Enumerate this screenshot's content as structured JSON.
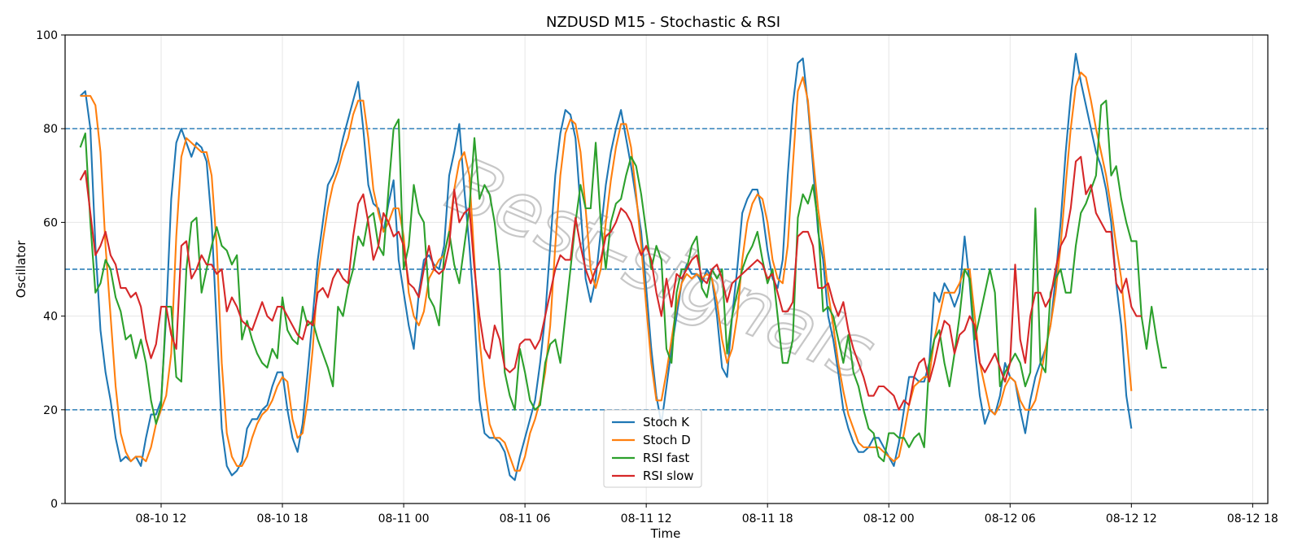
{
  "watermark": "Best-signals",
  "colors": {
    "k": "#1f77b4",
    "d": "#ff7f0e",
    "rsi_fast": "#2ca02c",
    "rsi_slow": "#d62728",
    "hline": "#1f77b4",
    "grid": "#e6e6e6"
  },
  "chart_data": {
    "type": "line",
    "title": "NZDUSD M15 - Stochastic & RSI",
    "xlabel": "Time",
    "ylabel": "Oscillator",
    "ylim": [
      0,
      100
    ],
    "xlim": [
      "2025-08-10 07:15",
      "2025-08-12 18:45"
    ],
    "x_start": "2025-08-10 08:00",
    "x_step_minutes": 15,
    "x_ticks": [
      {
        "x": "2025-08-10 12:00",
        "label": "08-10 12"
      },
      {
        "x": "2025-08-10 18:00",
        "label": "08-10 18"
      },
      {
        "x": "2025-08-11 00:00",
        "label": "08-11 00"
      },
      {
        "x": "2025-08-11 06:00",
        "label": "08-11 06"
      },
      {
        "x": "2025-08-11 12:00",
        "label": "08-11 12"
      },
      {
        "x": "2025-08-11 18:00",
        "label": "08-11 18"
      },
      {
        "x": "2025-08-12 00:00",
        "label": "08-12 00"
      },
      {
        "x": "2025-08-12 06:00",
        "label": "08-12 06"
      },
      {
        "x": "2025-08-12 12:00",
        "label": "08-12 12"
      },
      {
        "x": "2025-08-12 18:00",
        "label": "08-12 18"
      }
    ],
    "y_ticks": [
      0,
      20,
      40,
      60,
      80,
      100
    ],
    "hlines": [
      20,
      50,
      80
    ],
    "grid": true,
    "legend": "bottom-center",
    "series": [
      {
        "name": "Stoch K",
        "values": [
          87,
          88,
          80,
          55,
          37,
          28,
          22,
          14,
          9,
          10,
          9,
          10,
          8,
          14,
          19,
          19,
          22,
          40,
          65,
          77,
          80,
          77,
          74,
          77,
          76,
          73,
          60,
          38,
          16,
          8,
          6,
          7,
          9,
          16,
          18,
          18,
          20,
          21,
          25,
          28,
          28,
          20,
          14,
          11,
          17,
          28,
          40,
          52,
          60,
          68,
          70,
          73,
          78,
          82,
          86,
          90,
          80,
          68,
          64,
          63,
          58,
          64,
          69,
          52,
          45,
          38,
          33,
          45,
          52,
          53,
          51,
          50,
          55,
          70,
          75,
          81,
          67,
          55,
          40,
          22,
          15,
          14,
          14,
          13,
          11,
          6,
          5,
          10,
          14,
          18,
          22,
          30,
          40,
          55,
          70,
          79,
          84,
          83,
          78,
          63,
          48,
          43,
          48,
          58,
          68,
          75,
          80,
          84,
          78,
          72,
          65,
          58,
          46,
          33,
          23,
          17,
          25,
          33,
          40,
          47,
          51,
          49,
          49,
          47,
          50,
          48,
          40,
          29,
          27,
          40,
          50,
          62,
          65,
          67,
          67,
          62,
          54,
          48,
          46,
          52,
          70,
          85,
          94,
          95,
          85,
          72,
          58,
          52,
          40,
          35,
          28,
          20,
          16,
          13,
          11,
          11,
          12,
          14,
          14,
          12,
          10,
          8,
          13,
          20,
          27,
          27,
          26,
          26,
          30,
          45,
          43,
          47,
          45,
          42,
          45,
          57,
          47,
          33,
          23,
          17,
          20,
          19,
          23,
          30,
          27,
          26,
          20,
          15,
          22,
          27,
          30,
          33,
          38,
          48,
          60,
          75,
          87,
          96,
          90,
          85,
          80,
          75,
          72,
          67,
          60,
          47,
          38,
          23,
          16
        ]
      },
      {
        "name": "Stoch D",
        "values": [
          87,
          87,
          87,
          85,
          75,
          55,
          40,
          25,
          15,
          11,
          9,
          10,
          10,
          9,
          12,
          17,
          20,
          23,
          32,
          57,
          74,
          78,
          77,
          76,
          75,
          75,
          70,
          55,
          30,
          15,
          10,
          8,
          8,
          10,
          14,
          17,
          19,
          20,
          22,
          25,
          27,
          26,
          18,
          14,
          15,
          22,
          33,
          48,
          56,
          63,
          68,
          71,
          75,
          78,
          83,
          86,
          86,
          78,
          67,
          62,
          58,
          60,
          63,
          63,
          57,
          45,
          40,
          38,
          41,
          48,
          50,
          52,
          53,
          58,
          67,
          73,
          75,
          70,
          52,
          35,
          25,
          17,
          14,
          14,
          13,
          10,
          7,
          7,
          10,
          15,
          18,
          22,
          28,
          38,
          55,
          70,
          79,
          82,
          81,
          75,
          63,
          50,
          46,
          50,
          60,
          69,
          76,
          81,
          81,
          76,
          66,
          55,
          42,
          30,
          22,
          22,
          28,
          35,
          42,
          47,
          49,
          48,
          49,
          48,
          49,
          48,
          43,
          35,
          30,
          33,
          40,
          52,
          60,
          64,
          66,
          65,
          60,
          52,
          48,
          47,
          55,
          72,
          88,
          91,
          86,
          74,
          63,
          55,
          45,
          38,
          30,
          24,
          19,
          16,
          13,
          12,
          12,
          12,
          12,
          11,
          10,
          9,
          10,
          15,
          21,
          25,
          26,
          27,
          27,
          35,
          40,
          45,
          45,
          45,
          47,
          50,
          50,
          40,
          30,
          25,
          20,
          19,
          21,
          25,
          27,
          26,
          22,
          20,
          20,
          22,
          27,
          33,
          38,
          45,
          55,
          68,
          80,
          89,
          92,
          91,
          86,
          80,
          75,
          70,
          63,
          55,
          48,
          36,
          24
        ]
      },
      {
        "name": "RSI fast",
        "values": [
          76,
          79,
          60,
          45,
          47,
          52,
          50,
          44,
          41,
          35,
          36,
          31,
          35,
          30,
          22,
          17,
          21,
          42,
          42,
          27,
          26,
          50,
          60,
          61,
          45,
          50,
          55,
          59,
          55,
          54,
          51,
          53,
          35,
          39,
          35,
          32,
          30,
          29,
          33,
          31,
          44,
          37,
          35,
          34,
          42,
          38,
          39,
          35,
          32,
          29,
          25,
          42,
          40,
          46,
          50,
          57,
          55,
          61,
          62,
          55,
          53,
          67,
          80,
          82,
          50,
          55,
          68,
          62,
          60,
          44,
          42,
          38,
          53,
          58,
          51,
          47,
          55,
          63,
          78,
          65,
          68,
          66,
          60,
          50,
          28,
          23,
          20,
          33,
          28,
          22,
          20,
          21,
          30,
          34,
          35,
          30,
          40,
          50,
          60,
          68,
          63,
          63,
          77,
          60,
          50,
          60,
          64,
          65,
          70,
          74,
          72,
          66,
          58,
          50,
          55,
          52,
          33,
          30,
          45,
          50,
          50,
          55,
          57,
          46,
          44,
          50,
          48,
          50,
          32,
          40,
          45,
          50,
          53,
          55,
          58,
          52,
          47,
          50,
          40,
          30,
          30,
          35,
          61,
          66,
          64,
          68,
          60,
          41,
          42,
          40,
          35,
          30,
          36,
          28,
          25,
          20,
          16,
          15,
          10,
          9,
          15,
          15,
          14,
          14,
          12,
          14,
          15,
          12,
          30,
          35,
          37,
          30,
          25,
          32,
          40,
          50,
          48,
          35,
          40,
          45,
          50,
          45,
          25,
          28,
          30,
          32,
          30,
          25,
          28,
          63,
          30,
          28,
          45,
          48,
          50,
          45,
          45,
          55,
          62,
          64,
          67,
          70,
          85,
          86,
          70,
          72,
          65,
          60,
          56,
          56,
          40,
          33,
          42,
          35,
          29,
          29
        ]
      },
      {
        "name": "RSI slow",
        "values": [
          69,
          71,
          62,
          53,
          55,
          58,
          53,
          51,
          46,
          46,
          44,
          45,
          42,
          35,
          31,
          34,
          42,
          42,
          36,
          33,
          55,
          56,
          48,
          50,
          53,
          51,
          51,
          49,
          50,
          41,
          44,
          42,
          39,
          38,
          37,
          40,
          43,
          40,
          39,
          42,
          42,
          40,
          38,
          36,
          35,
          39,
          38,
          45,
          46,
          44,
          48,
          50,
          48,
          47,
          57,
          64,
          66,
          60,
          52,
          55,
          62,
          60,
          57,
          58,
          55,
          47,
          46,
          44,
          50,
          55,
          50,
          49,
          50,
          55,
          67,
          60,
          62,
          63,
          50,
          40,
          33,
          31,
          38,
          35,
          29,
          28,
          29,
          34,
          35,
          35,
          33,
          35,
          40,
          45,
          50,
          53,
          52,
          52,
          61,
          55,
          50,
          47,
          50,
          52,
          57,
          58,
          60,
          63,
          62,
          60,
          56,
          53,
          55,
          52,
          45,
          40,
          48,
          42,
          49,
          48,
          50,
          52,
          53,
          48,
          47,
          50,
          51,
          48,
          43,
          47,
          48,
          49,
          50,
          51,
          52,
          51,
          48,
          49,
          45,
          41,
          41,
          43,
          57,
          58,
          58,
          55,
          46,
          46,
          47,
          43,
          40,
          43,
          37,
          33,
          30,
          27,
          23,
          23,
          25,
          25,
          24,
          23,
          20,
          22,
          21,
          27,
          30,
          31,
          26,
          30,
          35,
          39,
          38,
          32,
          36,
          37,
          40,
          38,
          30,
          28,
          30,
          32,
          29,
          26,
          30,
          51,
          35,
          30,
          40,
          45,
          45,
          42,
          44,
          50,
          55,
          57,
          63,
          73,
          74,
          66,
          68,
          62,
          60,
          58,
          58,
          47,
          45,
          48,
          42,
          40,
          40
        ]
      }
    ]
  },
  "legend_entries": [
    {
      "label": "Stoch K",
      "color": "#1f77b4"
    },
    {
      "label": "Stoch D",
      "color": "#ff7f0e"
    },
    {
      "label": "RSI fast",
      "color": "#2ca02c"
    },
    {
      "label": "RSI slow",
      "color": "#d62728"
    }
  ]
}
